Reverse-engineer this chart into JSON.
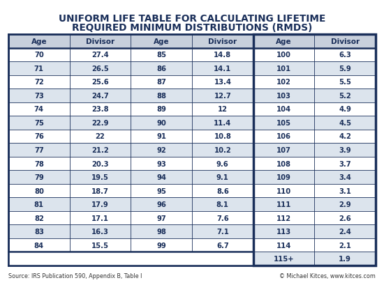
{
  "title_line1": "UNIFORM LIFE TABLE FOR CALCULATING LIFETIME",
  "title_line2": "REQUIRED MINIMUM DISTRIBUTIONS (RMDS)",
  "title_color": "#1a2f5a",
  "outer_bg": "#ffffff",
  "table_bg": "#ffffff",
  "header_bg": "#c8d0dc",
  "header_text_color": "#1a2f5a",
  "row_bg_even": "#ffffff",
  "row_bg_odd": "#dce4ed",
  "cell_text_color": "#1a2f5a",
  "border_color": "#1a2f5a",
  "footer_left": "Source: IRS Publication 590, Appendix B, Table I",
  "footer_right": "© Michael Kitces, www.kitces.com",
  "footer_link_color": "#1a6fba",
  "col1_data": [
    [
      "70",
      "27.4"
    ],
    [
      "71",
      "26.5"
    ],
    [
      "72",
      "25.6"
    ],
    [
      "73",
      "24.7"
    ],
    [
      "74",
      "23.8"
    ],
    [
      "75",
      "22.9"
    ],
    [
      "76",
      "22"
    ],
    [
      "77",
      "21.2"
    ],
    [
      "78",
      "20.3"
    ],
    [
      "79",
      "19.5"
    ],
    [
      "80",
      "18.7"
    ],
    [
      "81",
      "17.9"
    ],
    [
      "82",
      "17.1"
    ],
    [
      "83",
      "16.3"
    ],
    [
      "84",
      "15.5"
    ]
  ],
  "col2_data": [
    [
      "85",
      "14.8"
    ],
    [
      "86",
      "14.1"
    ],
    [
      "87",
      "13.4"
    ],
    [
      "88",
      "12.7"
    ],
    [
      "89",
      "12"
    ],
    [
      "90",
      "11.4"
    ],
    [
      "91",
      "10.8"
    ],
    [
      "92",
      "10.2"
    ],
    [
      "93",
      "9.6"
    ],
    [
      "94",
      "9.1"
    ],
    [
      "95",
      "8.6"
    ],
    [
      "96",
      "8.1"
    ],
    [
      "97",
      "7.6"
    ],
    [
      "98",
      "7.1"
    ],
    [
      "99",
      "6.7"
    ]
  ],
  "col3_data": [
    [
      "100",
      "6.3"
    ],
    [
      "101",
      "5.9"
    ],
    [
      "102",
      "5.5"
    ],
    [
      "103",
      "5.2"
    ],
    [
      "104",
      "4.9"
    ],
    [
      "105",
      "4.5"
    ],
    [
      "106",
      "4.2"
    ],
    [
      "107",
      "3.9"
    ],
    [
      "108",
      "3.7"
    ],
    [
      "109",
      "3.4"
    ],
    [
      "110",
      "3.1"
    ],
    [
      "111",
      "2.9"
    ],
    [
      "112",
      "2.6"
    ],
    [
      "113",
      "2.4"
    ],
    [
      "114",
      "2.1"
    ],
    [
      "115+",
      "1.9"
    ]
  ]
}
